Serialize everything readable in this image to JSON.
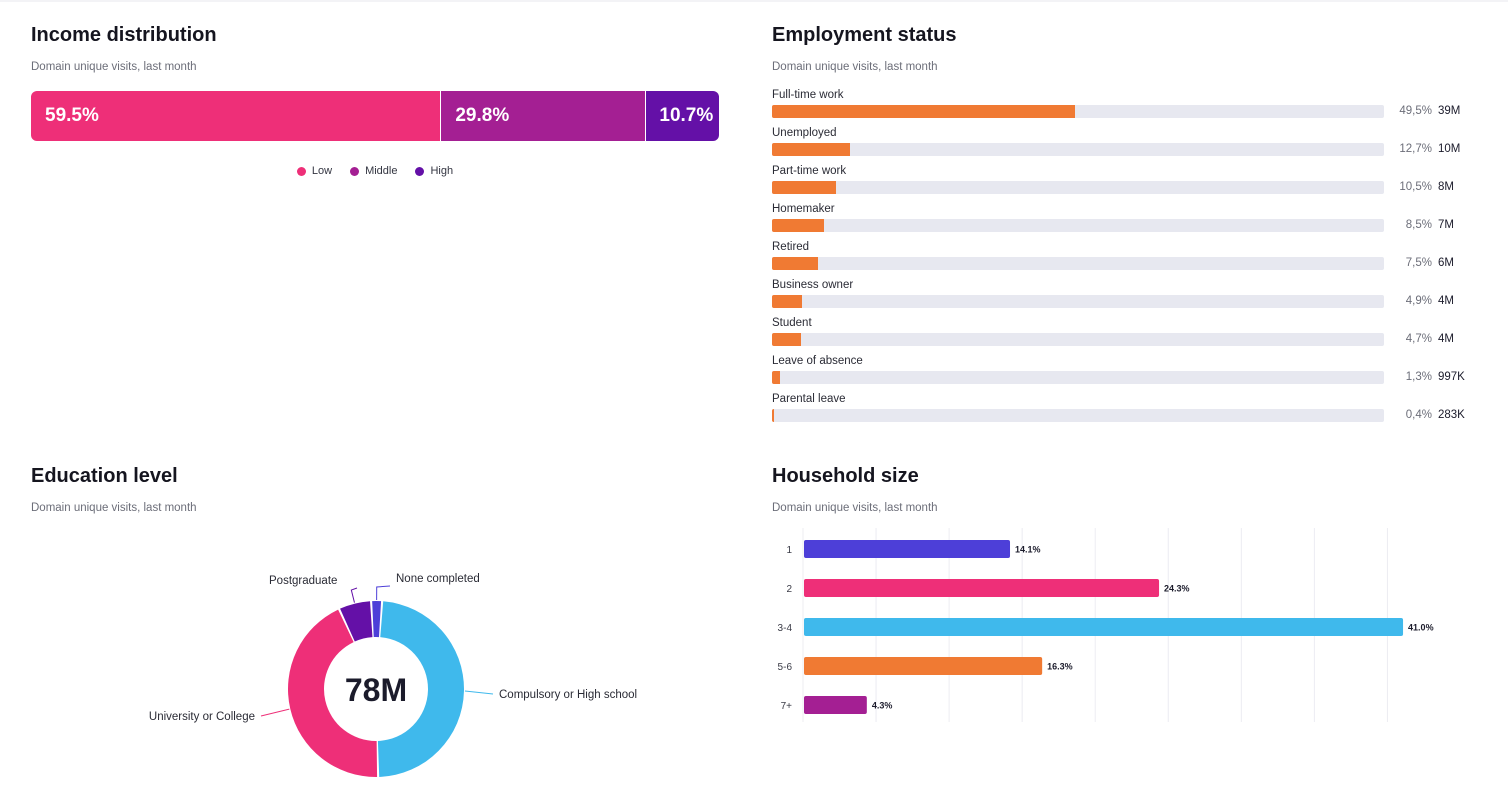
{
  "income": {
    "title": "Income distribution",
    "subtitle": "Domain unique visits, last month",
    "segments": [
      {
        "label": "59.5%",
        "value": 59.5,
        "color": "#ee2f78"
      },
      {
        "label": "29.8%",
        "value": 29.8,
        "color": "#a41f93"
      },
      {
        "label": "10.7%",
        "value": 10.7,
        "color": "#6410a7"
      }
    ],
    "legend": [
      "Low",
      "Middle",
      "High"
    ]
  },
  "employment": {
    "title": "Employment status",
    "subtitle": "Domain unique visits, last month",
    "bar_color": "#f07a33",
    "track_color": "#e7e8f0",
    "rows": [
      {
        "label": "Full-time work",
        "pct": "49,5%",
        "value": 49.5,
        "abs": "39M"
      },
      {
        "label": "Unemployed",
        "pct": "12,7%",
        "value": 12.7,
        "abs": "10M"
      },
      {
        "label": "Part-time work",
        "pct": "10,5%",
        "value": 10.5,
        "abs": "8M"
      },
      {
        "label": "Homemaker",
        "pct": "8,5%",
        "value": 8.5,
        "abs": "7M"
      },
      {
        "label": "Retired",
        "pct": "7,5%",
        "value": 7.5,
        "abs": "6M"
      },
      {
        "label": "Business owner",
        "pct": "4,9%",
        "value": 4.9,
        "abs": "4M"
      },
      {
        "label": "Student",
        "pct": "4,7%",
        "value": 4.7,
        "abs": "4M"
      },
      {
        "label": "Leave of absence",
        "pct": "1,3%",
        "value": 1.3,
        "abs": "997K"
      },
      {
        "label": "Parental leave",
        "pct": "0,4%",
        "value": 0.4,
        "abs": "283K"
      }
    ]
  },
  "education": {
    "title": "Education level",
    "subtitle": "Domain unique visits, last month",
    "center_label": "78M"
  },
  "household": {
    "title": "Household size",
    "subtitle": "Domain unique visits, last month"
  },
  "chart_data": [
    {
      "type": "bar",
      "orientation": "stacked-horizontal",
      "title": "Income distribution",
      "subtitle": "Domain unique visits, last month",
      "categories": [
        "Low",
        "Middle",
        "High"
      ],
      "values": [
        59.5,
        29.8,
        10.7
      ],
      "unit": "%",
      "legend_position": "bottom"
    },
    {
      "type": "bar",
      "orientation": "horizontal",
      "title": "Employment status",
      "subtitle": "Domain unique visits, last month",
      "categories": [
        "Full-time work",
        "Unemployed",
        "Part-time work",
        "Homemaker",
        "Retired",
        "Business owner",
        "Student",
        "Leave of absence",
        "Parental leave"
      ],
      "values": [
        49.5,
        12.7,
        10.5,
        8.5,
        7.5,
        4.9,
        4.7,
        1.3,
        0.4
      ],
      "unit": "%",
      "xlim": [
        0,
        100
      ]
    },
    {
      "type": "pie",
      "style": "donut",
      "title": "Education level",
      "subtitle": "Domain unique visits, last month",
      "center_label": "78M",
      "start_angle_deg": 4,
      "slices": [
        {
          "label": "Compulsory or High school",
          "value": 48.5,
          "color": "#3fb9ec"
        },
        {
          "label": "University or College",
          "value": 43.5,
          "color": "#ee2f78"
        },
        {
          "label": "Postgraduate",
          "value": 6.0,
          "color": "#6410a7"
        },
        {
          "label": "None completed",
          "value": 2.0,
          "color": "#4d3fd8"
        }
      ]
    },
    {
      "type": "bar",
      "orientation": "horizontal",
      "title": "Household size",
      "subtitle": "Domain unique visits, last month",
      "categories": [
        "1",
        "2",
        "3-4",
        "5-6",
        "7+"
      ],
      "values": [
        14.1,
        24.3,
        41.0,
        16.3,
        4.3
      ],
      "labels": [
        "14.1%",
        "24.3%",
        "41.0%",
        "16.3%",
        "4.3%"
      ],
      "colors": [
        "#4d3fd8",
        "#ee2f78",
        "#3fb9ec",
        "#f07a33",
        "#a41f93"
      ],
      "xlim": [
        0,
        40
      ],
      "grid": true
    }
  ]
}
